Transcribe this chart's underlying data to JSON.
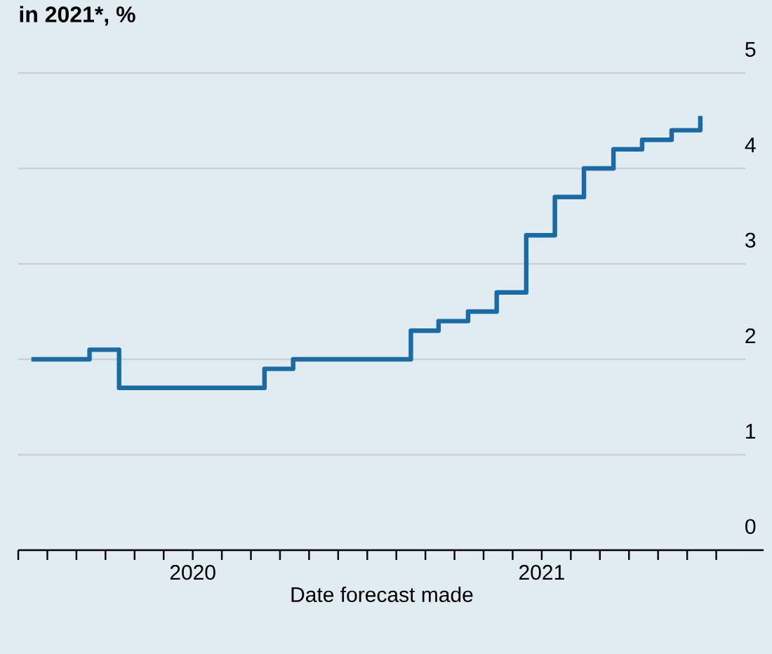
{
  "chart_data": {
    "type": "step",
    "title": "in 2021*, %",
    "xlabel": "Date forecast made",
    "color": "#1a6aa6",
    "grid": "y",
    "x": [
      "2020-01-15",
      "2020-03-15",
      "2020-04-15",
      "2020-09-15",
      "2020-10-15",
      "2021-02-15",
      "2021-03-15",
      "2021-04-15",
      "2021-05-15",
      "2021-06-15",
      "2021-07-15",
      "2021-08-15",
      "2021-09-15",
      "2021-10-15",
      "2021-11-15",
      "2021-12-15"
    ],
    "values": [
      2.0,
      2.1,
      1.7,
      1.9,
      2.0,
      2.3,
      2.4,
      2.5,
      2.7,
      3.3,
      3.7,
      4.0,
      4.2,
      4.3,
      4.4,
      4.55
    ],
    "xlim": [
      "2020-01-01",
      "2022-02-01"
    ],
    "ylim": [
      0,
      5
    ],
    "yticks": [
      0,
      1,
      2,
      3,
      4,
      5
    ],
    "xticks": [
      {
        "value": "2020-01",
        "label": null
      },
      {
        "value": "2020-02",
        "label": null
      },
      {
        "value": "2020-03",
        "label": null
      },
      {
        "value": "2020-04",
        "label": null
      },
      {
        "value": "2020-05",
        "label": null
      },
      {
        "value": "2020-06",
        "label": null
      },
      {
        "value": "2020-07",
        "label": "2020"
      },
      {
        "value": "2020-08",
        "label": null
      },
      {
        "value": "2020-09",
        "label": null
      },
      {
        "value": "2020-10",
        "label": null
      },
      {
        "value": "2020-11",
        "label": null
      },
      {
        "value": "2020-12",
        "label": null
      },
      {
        "value": "2021-01",
        "label": null
      },
      {
        "value": "2021-02",
        "label": null
      },
      {
        "value": "2021-03",
        "label": null
      },
      {
        "value": "2021-04",
        "label": null
      },
      {
        "value": "2021-05",
        "label": null
      },
      {
        "value": "2021-06",
        "label": null
      },
      {
        "value": "2021-07",
        "label": "2021"
      },
      {
        "value": "2021-08",
        "label": null
      },
      {
        "value": "2021-09",
        "label": null
      },
      {
        "value": "2021-10",
        "label": null
      },
      {
        "value": "2021-11",
        "label": null
      },
      {
        "value": "2021-12",
        "label": null
      },
      {
        "value": "2022-01",
        "label": null
      }
    ]
  }
}
